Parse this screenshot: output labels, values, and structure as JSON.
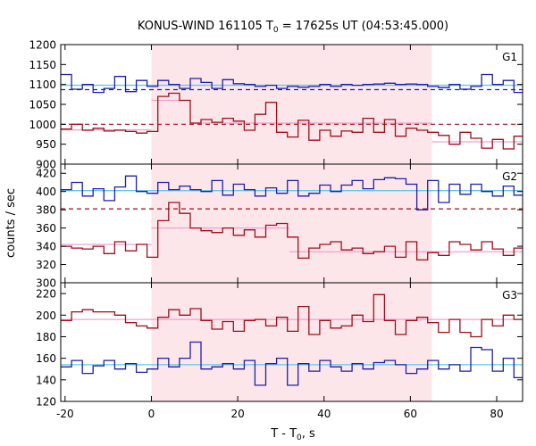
{
  "chart_data": {
    "type": "line",
    "title": "KONUS-WIND 161105 T",
    "title_sub": "0",
    "title_rest": " = 17625s UT (04:53:45.000)",
    "xlabel": "T - T",
    "xlabel_sub": "0",
    "xlabel_rest": ", s",
    "ylabel": "counts / sec",
    "xlim": [
      -21,
      86
    ],
    "x_ticks": [
      -20,
      0,
      20,
      40,
      60,
      80
    ],
    "x_tick_labels": [
      "-20",
      "0",
      "20",
      "40",
      "60",
      "80"
    ],
    "shaded_interval": [
      0,
      65
    ],
    "grid": false,
    "colors": {
      "blue": "#1f1fa8",
      "red": "#9c0f1b",
      "cyan": "#62c8e8",
      "pink": "#f0a0d0",
      "shade": "#fde6ea"
    },
    "panels": [
      {
        "label": "G1",
        "ylim": [
          900,
          1200
        ],
        "y_ticks": [
          900,
          950,
          1000,
          1050,
          1100,
          1150,
          1200
        ],
        "y_tick_labels": [
          "900",
          "950",
          "1000",
          "1050",
          "1100",
          "1150",
          "1200"
        ],
        "blue": [
          [
            -21,
            1125
          ],
          [
            -18.5,
            1088
          ],
          [
            -16,
            1100
          ],
          [
            -13.5,
            1080
          ],
          [
            -11,
            1090
          ],
          [
            -8.5,
            1120
          ],
          [
            -6,
            1082
          ],
          [
            -3.5,
            1110
          ],
          [
            -1,
            1095
          ],
          [
            1.5,
            1110
          ],
          [
            4,
            1100
          ],
          [
            6.5,
            1090
          ],
          [
            9,
            1115
          ],
          [
            11.5,
            1105
          ],
          [
            14,
            1090
          ],
          [
            16.5,
            1112
          ],
          [
            19,
            1102
          ],
          [
            21.5,
            1100
          ],
          [
            24,
            1095
          ],
          [
            26.5,
            1098
          ],
          [
            29,
            1090
          ],
          [
            31.5,
            1095
          ],
          [
            34,
            1093
          ],
          [
            36.5,
            1095
          ],
          [
            39,
            1100
          ],
          [
            41.5,
            1095
          ],
          [
            44,
            1100
          ],
          [
            46.5,
            1098
          ],
          [
            49,
            1100
          ],
          [
            51.5,
            1101
          ],
          [
            54,
            1103
          ],
          [
            56.5,
            1100
          ],
          [
            59,
            1101
          ],
          [
            61.5,
            1100
          ],
          [
            64,
            1095
          ],
          [
            66.5,
            1092
          ],
          [
            69,
            1100
          ],
          [
            71.5,
            1088
          ],
          [
            74,
            1095
          ],
          [
            76.5,
            1125
          ],
          [
            79,
            1100
          ],
          [
            81.5,
            1110
          ],
          [
            84,
            1080
          ]
        ],
        "red": [
          [
            -21,
            988
          ],
          [
            -18.5,
            1000
          ],
          [
            -16,
            985
          ],
          [
            -13.5,
            990
          ],
          [
            -11,
            983
          ],
          [
            -8.5,
            985
          ],
          [
            -6,
            982
          ],
          [
            -3.5,
            978
          ],
          [
            -1,
            982
          ],
          [
            1.5,
            1070
          ],
          [
            4,
            1078
          ],
          [
            6.5,
            1060
          ],
          [
            9,
            1003
          ],
          [
            11.5,
            1012
          ],
          [
            14,
            1005
          ],
          [
            16.5,
            1015
          ],
          [
            19,
            1008
          ],
          [
            21.5,
            985
          ],
          [
            24,
            1025
          ],
          [
            26.5,
            1055
          ],
          [
            29,
            980
          ],
          [
            31.5,
            968
          ],
          [
            34,
            1010
          ],
          [
            36.5,
            960
          ],
          [
            39,
            985
          ],
          [
            41.5,
            970
          ],
          [
            44,
            983
          ],
          [
            46.5,
            980
          ],
          [
            49,
            1015
          ],
          [
            51.5,
            980
          ],
          [
            54,
            1012
          ],
          [
            56.5,
            970
          ],
          [
            59,
            990
          ],
          [
            61.5,
            985
          ],
          [
            64,
            980
          ],
          [
            66.5,
            972
          ],
          [
            69,
            950
          ],
          [
            71.5,
            980
          ],
          [
            74,
            965
          ],
          [
            76.5,
            940
          ],
          [
            79,
            962
          ],
          [
            81.5,
            938
          ],
          [
            84,
            970
          ]
        ],
        "blue_levels": [
          [
            -21,
            86,
            1098
          ]
        ],
        "pink_levels": [
          [
            -21,
            0,
            986
          ],
          [
            0,
            9,
            1060
          ],
          [
            9,
            65,
            1003
          ],
          [
            65,
            86,
            956
          ]
        ],
        "blue_dashed": 1087,
        "red_dashed": 1000
      },
      {
        "label": "G2",
        "ylim": [
          300,
          430
        ],
        "y_ticks": [
          300,
          320,
          340,
          360,
          380,
          400,
          420
        ],
        "y_tick_labels": [
          "300",
          "320",
          "340",
          "360",
          "380",
          "400",
          "420"
        ],
        "blue": [
          [
            -21,
            402
          ],
          [
            -18.5,
            410
          ],
          [
            -16,
            395
          ],
          [
            -13.5,
            403
          ],
          [
            -11,
            390
          ],
          [
            -8.5,
            405
          ],
          [
            -6,
            417
          ],
          [
            -3.5,
            400
          ],
          [
            -1,
            398
          ],
          [
            1.5,
            410
          ],
          [
            4,
            402
          ],
          [
            6.5,
            406
          ],
          [
            9,
            402
          ],
          [
            11.5,
            400
          ],
          [
            14,
            412
          ],
          [
            16.5,
            396
          ],
          [
            19,
            408
          ],
          [
            21.5,
            402
          ],
          [
            24,
            395
          ],
          [
            26.5,
            404
          ],
          [
            29,
            398
          ],
          [
            31.5,
            412
          ],
          [
            34,
            395
          ],
          [
            36.5,
            398
          ],
          [
            39,
            407
          ],
          [
            41.5,
            400
          ],
          [
            44,
            407
          ],
          [
            46.5,
            412
          ],
          [
            49,
            403
          ],
          [
            51.5,
            413
          ],
          [
            54,
            415
          ],
          [
            56.5,
            414
          ],
          [
            59,
            408
          ],
          [
            61.5,
            380
          ],
          [
            64,
            412
          ],
          [
            66.5,
            388
          ],
          [
            69,
            408
          ],
          [
            71.5,
            397
          ],
          [
            74,
            408
          ],
          [
            76.5,
            400
          ],
          [
            79,
            395
          ],
          [
            81.5,
            406
          ],
          [
            84,
            396
          ]
        ],
        "red": [
          [
            -21,
            340
          ],
          [
            -18.5,
            338
          ],
          [
            -16,
            337
          ],
          [
            -13.5,
            340
          ],
          [
            -11,
            332
          ],
          [
            -8.5,
            345
          ],
          [
            -6,
            335
          ],
          [
            -3.5,
            342
          ],
          [
            -1,
            328
          ],
          [
            1.5,
            368
          ],
          [
            4,
            388
          ],
          [
            6.5,
            376
          ],
          [
            9,
            360
          ],
          [
            11.5,
            357
          ],
          [
            14,
            355
          ],
          [
            16.5,
            360
          ],
          [
            19,
            352
          ],
          [
            21.5,
            358
          ],
          [
            24,
            350
          ],
          [
            26.5,
            363
          ],
          [
            29,
            365
          ],
          [
            31.5,
            350
          ],
          [
            34,
            327
          ],
          [
            36.5,
            338
          ],
          [
            39,
            342
          ],
          [
            41.5,
            345
          ],
          [
            44,
            336
          ],
          [
            46.5,
            338
          ],
          [
            49,
            332
          ],
          [
            51.5,
            334
          ],
          [
            54,
            340
          ],
          [
            56.5,
            328
          ],
          [
            59,
            345
          ],
          [
            61.5,
            325
          ],
          [
            64,
            333
          ],
          [
            66.5,
            330
          ],
          [
            69,
            345
          ],
          [
            71.5,
            342
          ],
          [
            74,
            336
          ],
          [
            76.5,
            345
          ],
          [
            79,
            337
          ],
          [
            81.5,
            330
          ],
          [
            84,
            338
          ]
        ],
        "blue_levels": [
          [
            -21,
            86,
            401
          ]
        ],
        "pink_levels": [
          [
            -21,
            0,
            342
          ],
          [
            0,
            32,
            360
          ],
          [
            32,
            86,
            334
          ]
        ],
        "red_dashed": 381
      },
      {
        "label": "G3",
        "ylim": [
          120,
          230
        ],
        "y_ticks": [
          120,
          140,
          160,
          180,
          200,
          220
        ],
        "y_tick_labels": [
          "120",
          "140",
          "160",
          "180",
          "200",
          "220"
        ],
        "blue": [
          [
            -21,
            152
          ],
          [
            -18.5,
            158
          ],
          [
            -16,
            146
          ],
          [
            -13.5,
            153
          ],
          [
            -11,
            158
          ],
          [
            -8.5,
            150
          ],
          [
            -6,
            155
          ],
          [
            -3.5,
            147
          ],
          [
            -1,
            150
          ],
          [
            1.5,
            160
          ],
          [
            4,
            152
          ],
          [
            6.5,
            160
          ],
          [
            9,
            175
          ],
          [
            11.5,
            150
          ],
          [
            14,
            152
          ],
          [
            16.5,
            155
          ],
          [
            19,
            150
          ],
          [
            21.5,
            158
          ],
          [
            24,
            135
          ],
          [
            26.5,
            155
          ],
          [
            29,
            160
          ],
          [
            31.5,
            135
          ],
          [
            34,
            155
          ],
          [
            36.5,
            148
          ],
          [
            39,
            158
          ],
          [
            41.5,
            152
          ],
          [
            44,
            148
          ],
          [
            46.5,
            155
          ],
          [
            49,
            150
          ],
          [
            51.5,
            156
          ],
          [
            54,
            158
          ],
          [
            56.5,
            154
          ],
          [
            59,
            146
          ],
          [
            61.5,
            150
          ],
          [
            64,
            158
          ],
          [
            66.5,
            150
          ],
          [
            69,
            154
          ],
          [
            71.5,
            148
          ],
          [
            74,
            170
          ],
          [
            76.5,
            168
          ],
          [
            79,
            148
          ],
          [
            81.5,
            160
          ],
          [
            84,
            142
          ]
        ],
        "red": [
          [
            -21,
            195
          ],
          [
            -18.5,
            203
          ],
          [
            -16,
            205
          ],
          [
            -13.5,
            203
          ],
          [
            -11,
            203
          ],
          [
            -8.5,
            200
          ],
          [
            -6,
            193
          ],
          [
            -3.5,
            190
          ],
          [
            -1,
            188
          ],
          [
            1.5,
            198
          ],
          [
            4,
            205
          ],
          [
            6.5,
            200
          ],
          [
            9,
            206
          ],
          [
            11.5,
            195
          ],
          [
            14,
            187
          ],
          [
            16.5,
            194
          ],
          [
            19,
            185
          ],
          [
            21.5,
            195
          ],
          [
            24,
            196
          ],
          [
            26.5,
            190
          ],
          [
            29,
            198
          ],
          [
            31.5,
            185
          ],
          [
            34,
            208
          ],
          [
            36.5,
            182
          ],
          [
            39,
            195
          ],
          [
            41.5,
            188
          ],
          [
            44,
            190
          ],
          [
            46.5,
            200
          ],
          [
            49,
            194
          ],
          [
            51.5,
            219
          ],
          [
            54,
            195
          ],
          [
            56.5,
            182
          ],
          [
            59,
            195
          ],
          [
            61.5,
            198
          ],
          [
            64,
            193
          ],
          [
            66.5,
            184
          ],
          [
            69,
            196
          ],
          [
            71.5,
            184
          ],
          [
            74,
            180
          ],
          [
            76.5,
            196
          ],
          [
            79,
            190
          ],
          [
            81.5,
            200
          ],
          [
            84,
            196
          ]
        ],
        "blue_levels": [
          [
            -21,
            86,
            154
          ]
        ],
        "pink_levels": [
          [
            -21,
            86,
            196
          ]
        ]
      }
    ]
  }
}
